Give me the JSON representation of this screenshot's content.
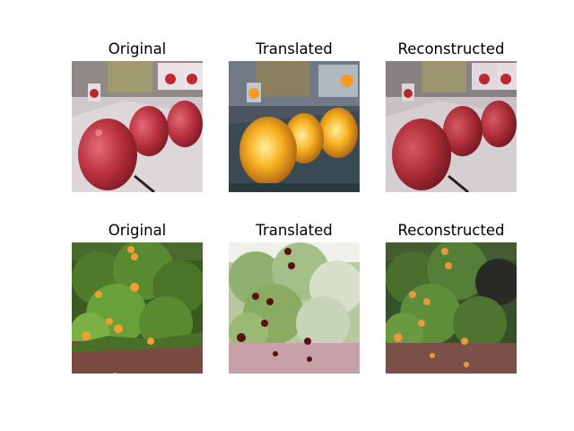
{
  "figure": {
    "rows": [
      {
        "panels": [
          {
            "title": "Original",
            "scene": "apples-red"
          },
          {
            "title": "Translated",
            "scene": "apples-orange"
          },
          {
            "title": "Reconstructed",
            "scene": "apples-red-soft"
          }
        ]
      },
      {
        "panels": [
          {
            "title": "Original",
            "scene": "orange-tree"
          },
          {
            "title": "Translated",
            "scene": "orange-tree-translated"
          },
          {
            "title": "Reconstructed",
            "scene": "orange-tree-soft"
          }
        ]
      }
    ]
  }
}
